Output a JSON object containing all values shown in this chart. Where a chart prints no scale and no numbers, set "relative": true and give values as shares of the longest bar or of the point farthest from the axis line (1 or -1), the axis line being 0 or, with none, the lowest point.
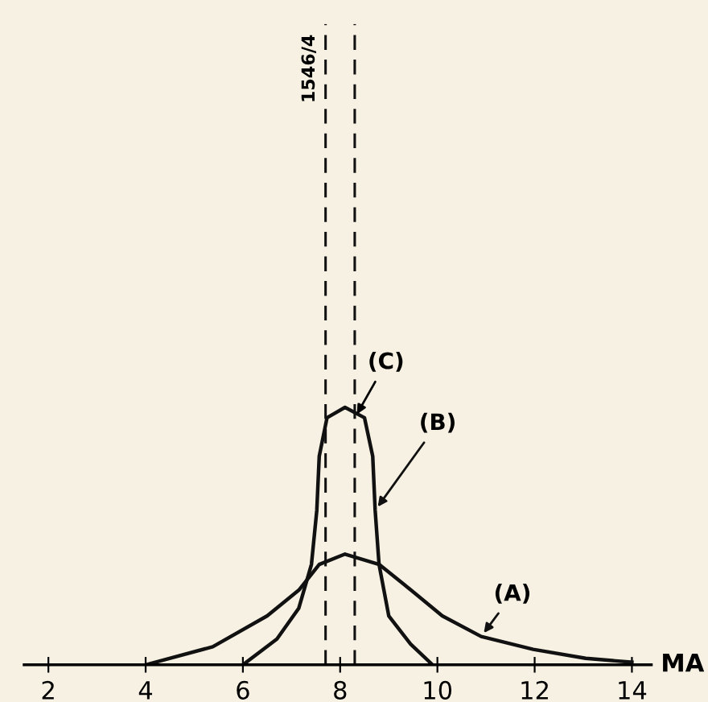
{
  "chart_data": {
    "type": "line",
    "relative": true,
    "xlabel": "MA",
    "xlim": [
      1.5,
      14.4
    ],
    "xticks": [
      2,
      4,
      6,
      8,
      10,
      12,
      14
    ],
    "series": [
      {
        "name": "(A)",
        "color": "#111111",
        "x": [
          4.0,
          5.38,
          6.5,
          7.15,
          7.57,
          8.1,
          8.8,
          9.33,
          10.1,
          10.9,
          11.97,
          13.05,
          14.0
        ],
        "values": [
          0,
          0.07,
          0.19,
          0.29,
          0.39,
          0.43,
          0.39,
          0.31,
          0.19,
          0.11,
          0.06,
          0.025,
          0.01
        ]
      },
      {
        "name": "(B)",
        "color": "#111111",
        "x": [
          6.0,
          6.7,
          7.15,
          7.41,
          7.52,
          7.57,
          7.73,
          8.1,
          8.5,
          8.67,
          8.72,
          8.8,
          9.0,
          9.45,
          9.9
        ],
        "values": [
          0,
          0.1,
          0.22,
          0.39,
          0.6,
          0.81,
          0.96,
          1.0,
          0.96,
          0.81,
          0.6,
          0.39,
          0.19,
          0.08,
          0
        ]
      }
    ],
    "ref_lines": [
      {
        "axis": "x",
        "value": 7.7,
        "line_style": "dashed",
        "color": "#111111"
      },
      {
        "axis": "x",
        "value": 8.3,
        "label": "(C)",
        "line_style": "dashed",
        "color": "#111111"
      }
    ],
    "annotations": [
      "1546/4"
    ],
    "grid": false,
    "legend": false,
    "marker": "none",
    "line_style": "solid"
  }
}
